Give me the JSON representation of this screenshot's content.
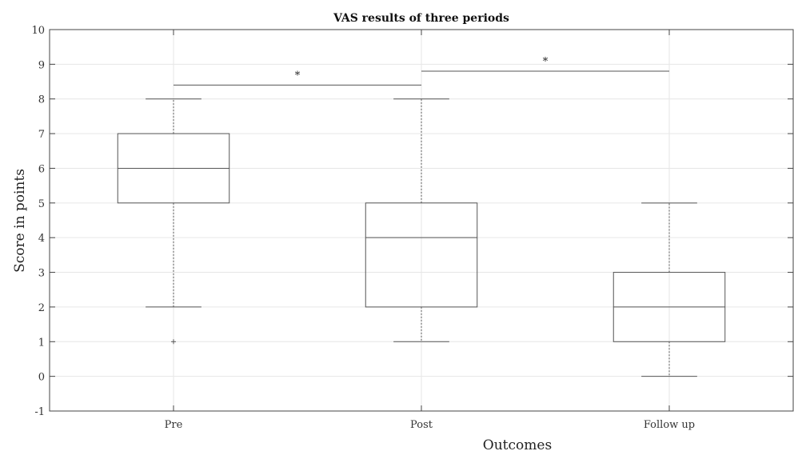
{
  "chart_data": {
    "type": "boxplot",
    "title": "VAS results of three periods",
    "xlabel": "Outcomes",
    "ylabel": "Score in points",
    "ylim": [
      -1,
      10
    ],
    "yticks": [
      -1,
      0,
      1,
      2,
      3,
      4,
      5,
      6,
      7,
      8,
      9,
      10
    ],
    "grid": true,
    "categories": [
      "Pre",
      "Post",
      "Follow  up"
    ],
    "boxes": [
      {
        "category": "Pre",
        "whisker_low": 2,
        "q1": 5,
        "median": 6,
        "q3": 7,
        "whisker_high": 8,
        "outliers": [
          1
        ]
      },
      {
        "category": "Post",
        "whisker_low": 1,
        "q1": 2,
        "median": 4,
        "q3": 5,
        "whisker_high": 8,
        "outliers": []
      },
      {
        "category": "Follow  up",
        "whisker_low": 0,
        "q1": 1,
        "median": 2,
        "q3": 3,
        "whisker_high": 5,
        "outliers": []
      }
    ],
    "significance": [
      {
        "from": "Pre",
        "to": "Post",
        "y": 8.4,
        "label": "*"
      },
      {
        "from": "Post",
        "to": "Follow  up",
        "y": 8.8,
        "label": "*"
      }
    ],
    "colors": {
      "box": "#555555",
      "grid": "#e6e6e6",
      "axis": "#444444"
    }
  }
}
